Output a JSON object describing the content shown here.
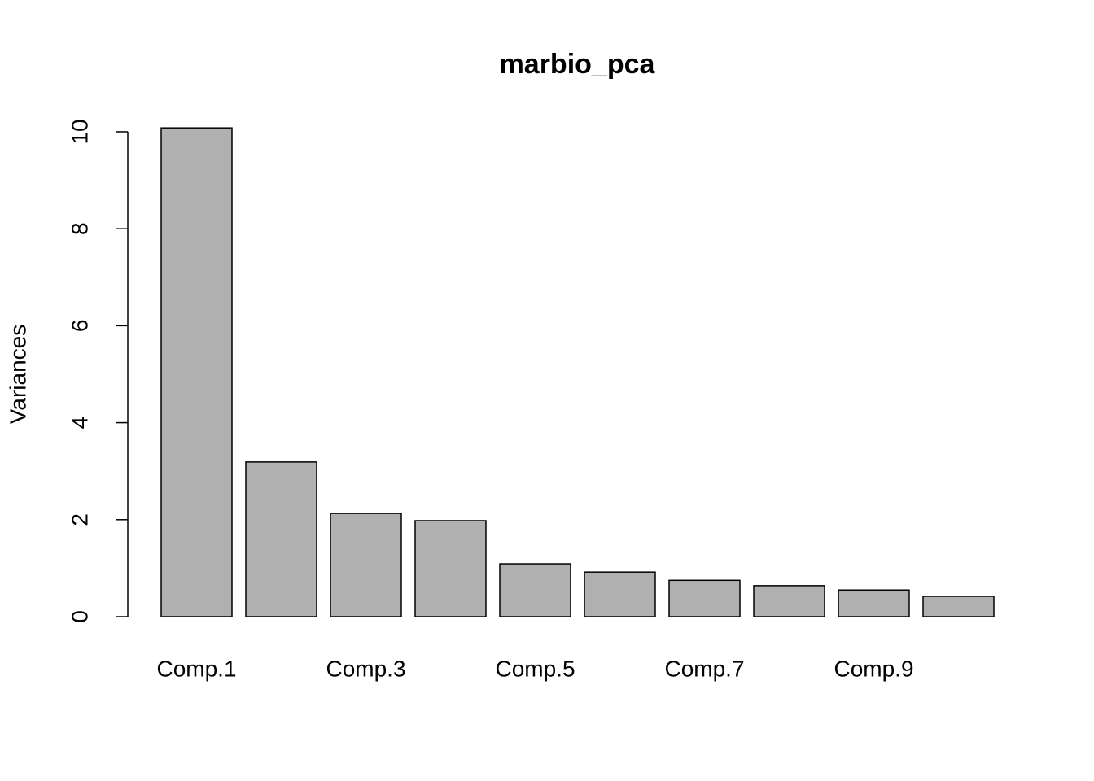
{
  "chart_data": {
    "type": "bar",
    "title": "marbio_pca",
    "y_label": "Variances",
    "categories": [
      "Comp.1",
      null,
      "Comp.3",
      null,
      "Comp.5",
      null,
      "Comp.7",
      null,
      "Comp.9",
      null
    ],
    "values": [
      10.08,
      3.19,
      2.13,
      1.98,
      1.09,
      0.92,
      0.75,
      0.64,
      0.55,
      0.42
    ],
    "color": "#b0b0b0",
    "ylim": [
      0,
      10.08
    ],
    "yticks": [
      0,
      2,
      4,
      6,
      8,
      10
    ],
    "grid": false
  }
}
